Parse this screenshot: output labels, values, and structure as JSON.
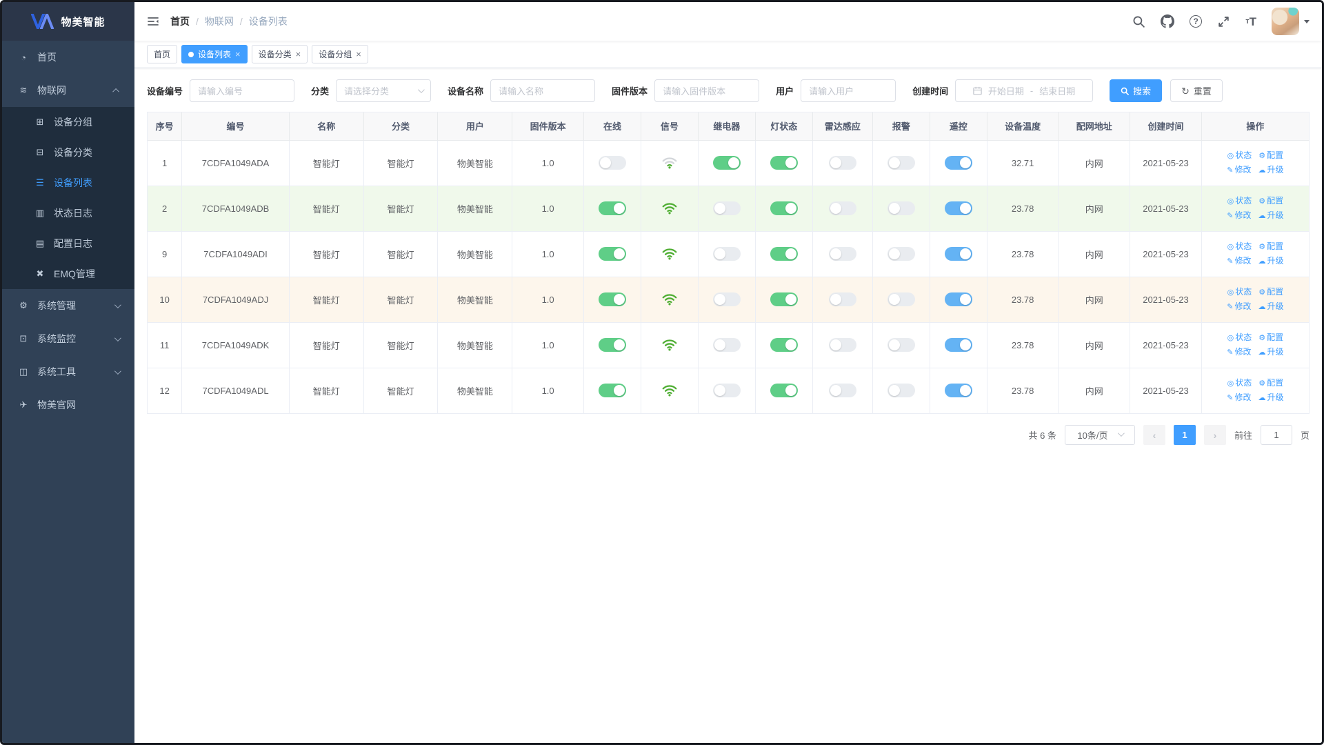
{
  "brand": {
    "name": "物美智能"
  },
  "sidebar": {
    "items": [
      {
        "id": "home",
        "label": "首页",
        "icon": "dashboard-icon",
        "glyph": "◔",
        "type": "top"
      },
      {
        "id": "iot",
        "label": "物联网",
        "icon": "iot-icon",
        "glyph": "≋",
        "type": "top",
        "arrow": "up"
      },
      {
        "id": "device-group",
        "label": "设备分组",
        "icon": "device-group-icon",
        "glyph": "⊞",
        "type": "sub"
      },
      {
        "id": "device-category",
        "label": "设备分类",
        "icon": "device-category-icon",
        "glyph": "⊟",
        "type": "sub"
      },
      {
        "id": "device-list",
        "label": "设备列表",
        "icon": "device-list-icon",
        "glyph": "☰",
        "type": "sub",
        "active": true
      },
      {
        "id": "status-log",
        "label": "状态日志",
        "icon": "status-log-icon",
        "glyph": "▥",
        "type": "sub"
      },
      {
        "id": "config-log",
        "label": "配置日志",
        "icon": "config-log-icon",
        "glyph": "▤",
        "type": "sub"
      },
      {
        "id": "emq",
        "label": "EMQ管理",
        "icon": "emq-icon",
        "glyph": "✖",
        "type": "sub"
      },
      {
        "id": "system-admin",
        "label": "系统管理",
        "icon": "gear-icon",
        "glyph": "⚙",
        "type": "top",
        "arrow": "down"
      },
      {
        "id": "system-monitor",
        "label": "系统监控",
        "icon": "monitor-icon",
        "glyph": "⊡",
        "type": "top",
        "arrow": "down"
      },
      {
        "id": "system-tools",
        "label": "系统工具",
        "icon": "toolbox-icon",
        "glyph": "◫",
        "type": "top",
        "arrow": "down"
      },
      {
        "id": "official-site",
        "label": "物美官网",
        "icon": "paper-plane-icon",
        "glyph": "✈",
        "type": "top"
      }
    ]
  },
  "breadcrumb": [
    "首页",
    "物联网",
    "设备列表"
  ],
  "navbar_icons": [
    "search-icon",
    "github-icon",
    "help-icon",
    "fullscreen-icon",
    "font-size-icon"
  ],
  "tabs": [
    {
      "label": "首页",
      "active": false,
      "closable": false
    },
    {
      "label": "设备列表",
      "active": true,
      "closable": true
    },
    {
      "label": "设备分类",
      "active": false,
      "closable": true
    },
    {
      "label": "设备分组",
      "active": false,
      "closable": true
    }
  ],
  "filters": [
    {
      "id": "device-code",
      "label": "设备编号",
      "type": "input",
      "placeholder": "请输入编号"
    },
    {
      "id": "category",
      "label": "分类",
      "type": "select",
      "placeholder": "请选择分类"
    },
    {
      "id": "device-name",
      "label": "设备名称",
      "type": "input",
      "placeholder": "请输入名称"
    },
    {
      "id": "firmware",
      "label": "固件版本",
      "type": "input",
      "placeholder": "请输入固件版本"
    },
    {
      "id": "user",
      "label": "用户",
      "type": "input",
      "placeholder": "请输入用户"
    },
    {
      "id": "created-range",
      "label": "创建时间",
      "type": "daterange",
      "start_placeholder": "开始日期",
      "separator": "-",
      "end_placeholder": "结束日期"
    }
  ],
  "actions": {
    "search": "搜索",
    "reset": "重置"
  },
  "table": {
    "columns": [
      "序号",
      "编号",
      "名称",
      "分类",
      "用户",
      "固件版本",
      "在线",
      "信号",
      "继电器",
      "灯状态",
      "雷达感应",
      "报警",
      "遥控",
      "设备温度",
      "配网地址",
      "创建时间",
      "操作"
    ],
    "ops": [
      {
        "id": "status",
        "label": "状态",
        "icon": "eye-icon",
        "glyph": "◎"
      },
      {
        "id": "config",
        "label": "配置",
        "icon": "gear-icon",
        "glyph": "⚙"
      },
      {
        "id": "edit",
        "label": "修改",
        "icon": "edit-icon",
        "glyph": "✎"
      },
      {
        "id": "upgrade",
        "label": "升级",
        "icon": "cloud-icon",
        "glyph": "☁"
      }
    ],
    "rows": [
      {
        "index": "1",
        "code": "7CDFA1049ADA",
        "name": "智能灯",
        "category": "智能灯",
        "user": "物美智能",
        "firmware": "1.0",
        "online": false,
        "signal": "weak",
        "relay": true,
        "light": true,
        "radar": false,
        "alarm": false,
        "remote": true,
        "temperature": "32.71",
        "network": "内网",
        "created": "2021-05-23",
        "highlight": "none"
      },
      {
        "index": "2",
        "code": "7CDFA1049ADB",
        "name": "智能灯",
        "category": "智能灯",
        "user": "物美智能",
        "firmware": "1.0",
        "online": true,
        "signal": "full",
        "relay": false,
        "light": true,
        "radar": false,
        "alarm": false,
        "remote": true,
        "temperature": "23.78",
        "network": "内网",
        "created": "2021-05-23",
        "highlight": "green"
      },
      {
        "index": "9",
        "code": "7CDFA1049ADI",
        "name": "智能灯",
        "category": "智能灯",
        "user": "物美智能",
        "firmware": "1.0",
        "online": true,
        "signal": "full",
        "relay": false,
        "light": true,
        "radar": false,
        "alarm": false,
        "remote": true,
        "temperature": "23.78",
        "network": "内网",
        "created": "2021-05-23",
        "highlight": "none"
      },
      {
        "index": "10",
        "code": "7CDFA1049ADJ",
        "name": "智能灯",
        "category": "智能灯",
        "user": "物美智能",
        "firmware": "1.0",
        "online": true,
        "signal": "full",
        "relay": false,
        "light": true,
        "radar": false,
        "alarm": false,
        "remote": true,
        "temperature": "23.78",
        "network": "内网",
        "created": "2021-05-23",
        "highlight": "orange"
      },
      {
        "index": "11",
        "code": "7CDFA1049ADK",
        "name": "智能灯",
        "category": "智能灯",
        "user": "物美智能",
        "firmware": "1.0",
        "online": true,
        "signal": "full",
        "relay": false,
        "light": true,
        "radar": false,
        "alarm": false,
        "remote": true,
        "temperature": "23.78",
        "network": "内网",
        "created": "2021-05-23",
        "highlight": "none"
      },
      {
        "index": "12",
        "code": "7CDFA1049ADL",
        "name": "智能灯",
        "category": "智能灯",
        "user": "物美智能",
        "firmware": "1.0",
        "online": true,
        "signal": "full",
        "relay": false,
        "light": true,
        "radar": false,
        "alarm": false,
        "remote": true,
        "temperature": "23.78",
        "network": "内网",
        "created": "2021-05-23",
        "highlight": "none"
      }
    ]
  },
  "pagination": {
    "total": "共 6 条",
    "page_size": "10条/页",
    "prev": "‹",
    "current": "1",
    "next": "›",
    "goto_label": "前往",
    "goto_value": "1",
    "page_suffix": "页"
  },
  "colors": {
    "accent": "#409eff",
    "toggle_green": "#5fce87",
    "toggle_blue": "#64b3f4",
    "wifi_green": "#4fae33",
    "wifi_gray": "#d3d6da",
    "row_green": "#f0f9eb",
    "row_orange": "#fdf6ec",
    "sidebar": "#304156",
    "submenu": "#1f2d3d"
  }
}
